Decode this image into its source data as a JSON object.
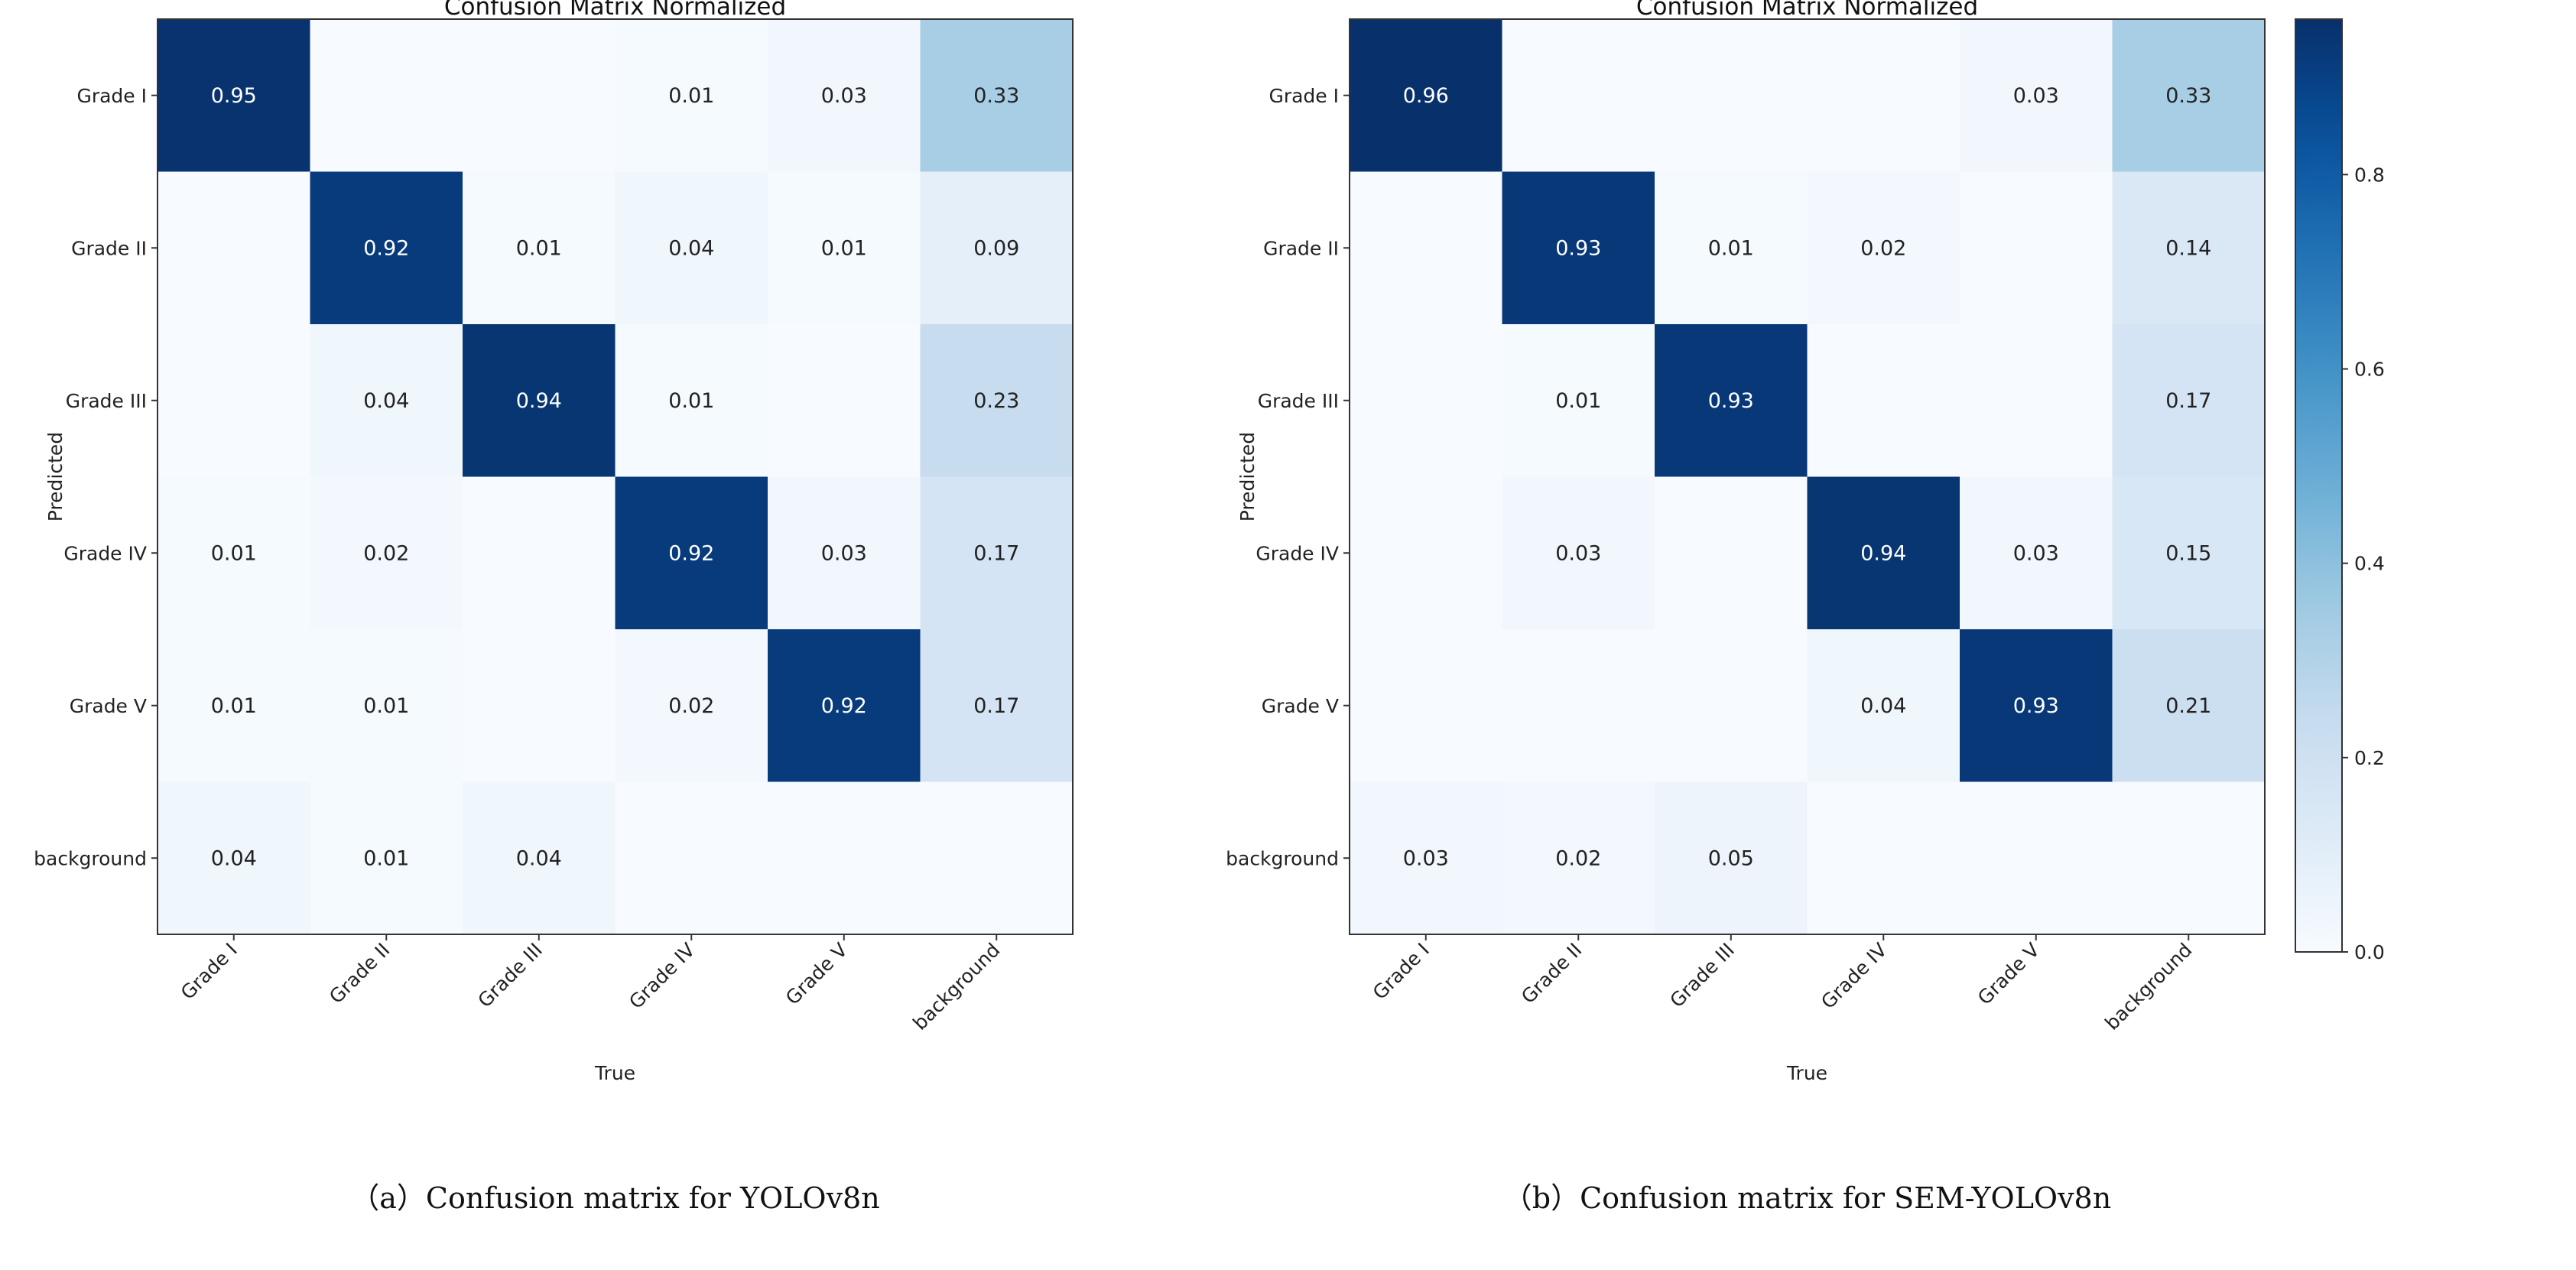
{
  "chart_data": [
    {
      "type": "heatmap",
      "title": "Confusion Matrix Normalized",
      "caption": "（a）Confusion matrix for YOLOv8n",
      "xlabel": "True",
      "ylabel": "Predicted",
      "x_categories": [
        "Grade I",
        "Grade II",
        "Grade III",
        "Grade IV",
        "Grade V",
        "background"
      ],
      "y_categories": [
        "Grade I",
        "Grade II",
        "Grade III",
        "Grade IV",
        "Grade V",
        "background"
      ],
      "values": [
        [
          0.95,
          null,
          null,
          0.01,
          0.03,
          0.33
        ],
        [
          null,
          0.92,
          0.01,
          0.04,
          0.01,
          0.09
        ],
        [
          null,
          0.04,
          0.94,
          0.01,
          null,
          0.23
        ],
        [
          0.01,
          0.02,
          null,
          0.92,
          0.03,
          0.17
        ],
        [
          0.01,
          0.01,
          null,
          0.02,
          0.92,
          0.17
        ],
        [
          0.04,
          0.01,
          0.04,
          null,
          null,
          null
        ]
      ],
      "colormap": "Blues",
      "vmin": 0.0,
      "vmax": 0.96
    },
    {
      "type": "heatmap",
      "title": "Confusion Matrix Normalized",
      "caption": "（b）Confusion matrix for SEM-YOLOv8n",
      "xlabel": "True",
      "ylabel": "Predicted",
      "x_categories": [
        "Grade I",
        "Grade II",
        "Grade III",
        "Grade IV",
        "Grade V",
        "background"
      ],
      "y_categories": [
        "Grade I",
        "Grade II",
        "Grade III",
        "Grade IV",
        "Grade V",
        "background"
      ],
      "values": [
        [
          0.96,
          null,
          null,
          null,
          0.03,
          0.33
        ],
        [
          null,
          0.93,
          0.01,
          0.02,
          null,
          0.14
        ],
        [
          null,
          0.01,
          0.93,
          null,
          null,
          0.17
        ],
        [
          null,
          0.03,
          null,
          0.94,
          0.03,
          0.15
        ],
        [
          null,
          null,
          null,
          0.04,
          0.93,
          0.21
        ],
        [
          0.03,
          0.02,
          0.05,
          null,
          null,
          null
        ]
      ],
      "colormap": "Blues",
      "vmin": 0.0,
      "vmax": 0.96
    }
  ],
  "colorbar": {
    "ticks": [
      "0.0",
      "0.2",
      "0.4",
      "0.6",
      "0.8"
    ],
    "tick_values": [
      0.0,
      0.2,
      0.4,
      0.6,
      0.8
    ],
    "min": 0.0,
    "max": 0.96
  }
}
